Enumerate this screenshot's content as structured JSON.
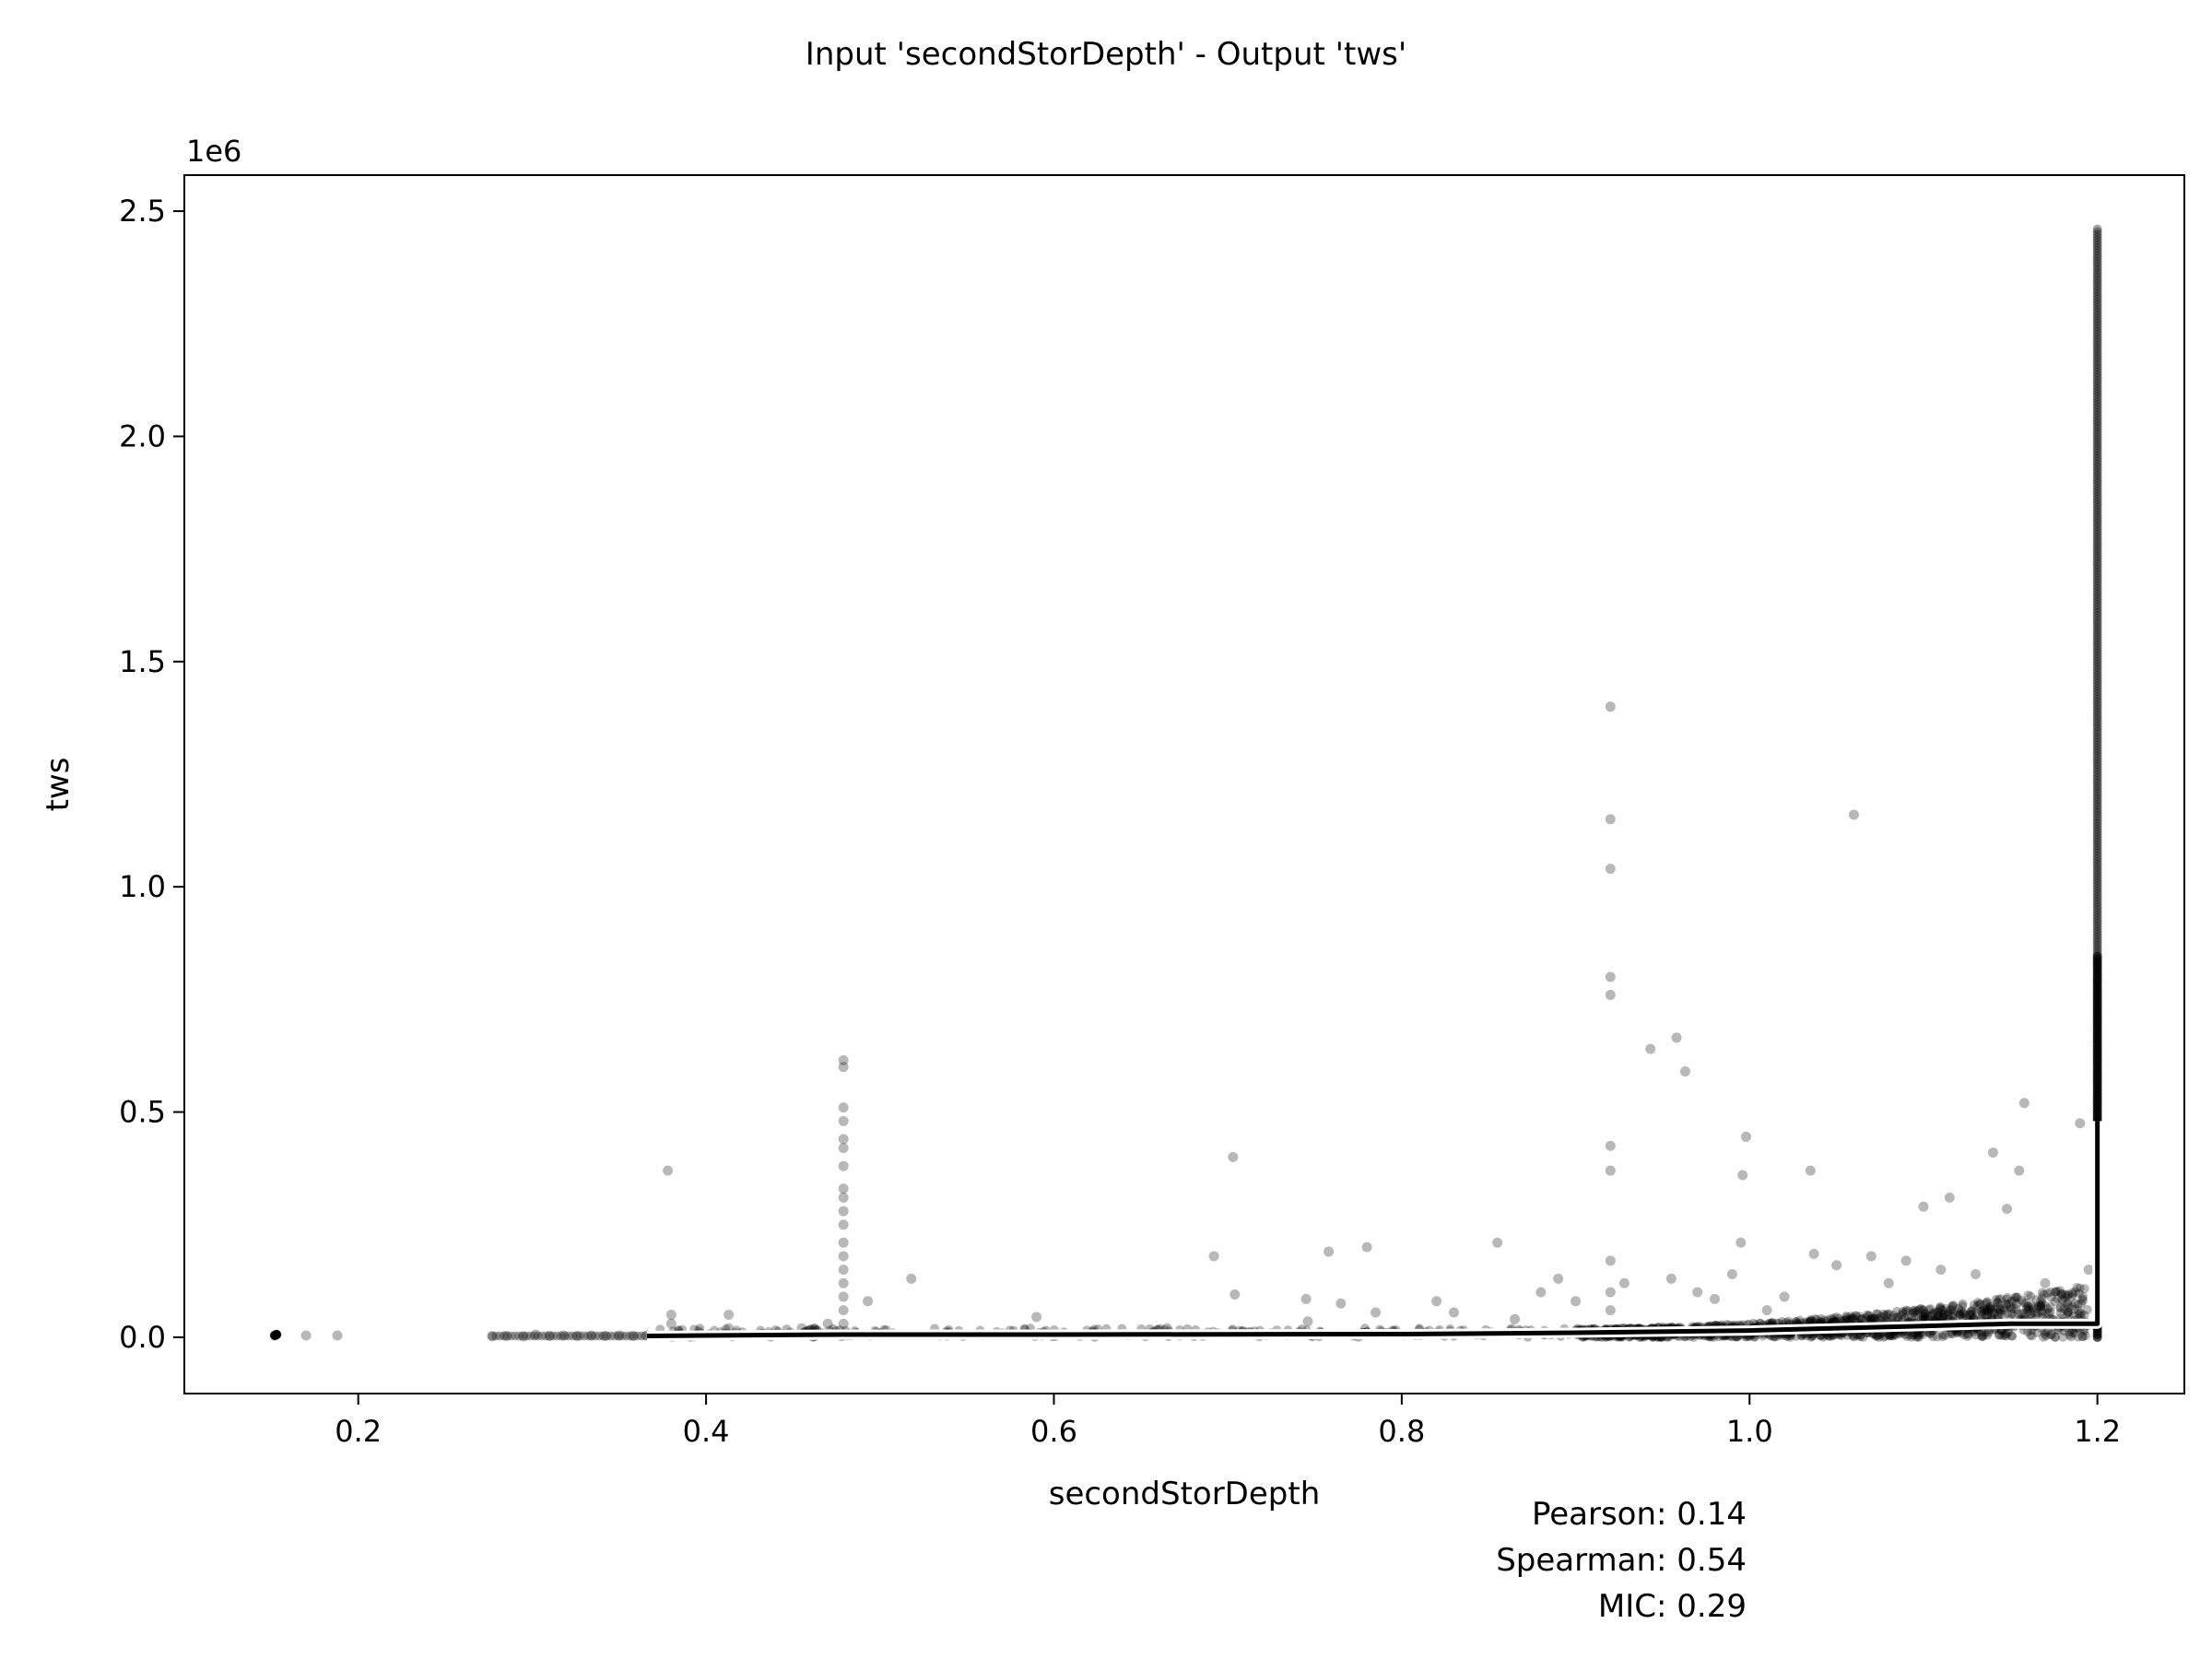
{
  "chart_data": {
    "type": "scatter",
    "title": "Input 'secondStorDepth' - Output 'tws'",
    "xlabel": "secondStorDepth",
    "ylabel": "tws",
    "y_offset_label": "1e6",
    "xlim": [
      0.1,
      1.25
    ],
    "ylim": [
      -0.125,
      2.58
    ],
    "y_scale_note": "values in units of 1e6",
    "x_ticks": [
      0.2,
      0.4,
      0.6,
      0.8,
      1.0,
      1.2
    ],
    "x_tick_labels": [
      "0.2",
      "0.4",
      "0.6",
      "0.8",
      "1.0",
      "1.2"
    ],
    "y_ticks": [
      0.0,
      0.5,
      1.0,
      1.5,
      2.0,
      2.5
    ],
    "y_tick_labels": [
      "0.0",
      "0.5",
      "1.0",
      "1.5",
      "2.0",
      "2.5"
    ],
    "grid": false,
    "legend": "none",
    "point_color": "#000000",
    "point_opacity": 0.28,
    "line_color": "#000000",
    "series": [
      {
        "kind": "scatter",
        "points": [
          [
            0.152,
            0.004
          ],
          [
            0.153,
            0.006
          ],
          [
            0.17,
            0.004
          ],
          [
            0.188,
            0.004
          ],
          [
            0.277,
            0.002
          ],
          [
            0.285,
            0.003
          ],
          [
            0.295,
            0.002
          ],
          [
            0.302,
            0.006
          ],
          [
            0.31,
            0.003
          ],
          [
            0.318,
            0.004
          ],
          [
            0.326,
            0.003
          ],
          [
            0.334,
            0.004
          ],
          [
            0.342,
            0.003
          ],
          [
            0.35,
            0.004
          ],
          [
            0.358,
            0.003
          ],
          [
            0.366,
            0.004
          ],
          [
            0.378,
            0.37
          ],
          [
            0.38,
            0.05
          ],
          [
            0.38,
            0.03
          ],
          [
            0.413,
            0.05
          ],
          [
            0.413,
            0.02
          ],
          [
            0.44,
            0.015
          ],
          [
            0.455,
            0.02
          ],
          [
            0.47,
            0.03
          ],
          [
            0.479,
            0.615
          ],
          [
            0.479,
            0.6
          ],
          [
            0.479,
            0.51
          ],
          [
            0.479,
            0.48
          ],
          [
            0.479,
            0.44
          ],
          [
            0.479,
            0.42
          ],
          [
            0.479,
            0.38
          ],
          [
            0.479,
            0.33
          ],
          [
            0.479,
            0.31
          ],
          [
            0.479,
            0.28
          ],
          [
            0.479,
            0.25
          ],
          [
            0.479,
            0.21
          ],
          [
            0.479,
            0.18
          ],
          [
            0.479,
            0.15
          ],
          [
            0.479,
            0.12
          ],
          [
            0.479,
            0.09
          ],
          [
            0.479,
            0.06
          ],
          [
            0.479,
            0.03
          ],
          [
            0.493,
            0.08
          ],
          [
            0.518,
            0.13
          ],
          [
            0.59,
            0.045
          ],
          [
            0.665,
            0.02
          ],
          [
            0.692,
            0.18
          ],
          [
            0.703,
            0.4
          ],
          [
            0.704,
            0.095
          ],
          [
            0.745,
            0.085
          ],
          [
            0.746,
            0.035
          ],
          [
            0.758,
            0.19
          ],
          [
            0.765,
            0.075
          ],
          [
            0.78,
            0.2
          ],
          [
            0.785,
            0.055
          ],
          [
            0.82,
            0.08
          ],
          [
            0.83,
            0.055
          ],
          [
            0.855,
            0.21
          ],
          [
            0.865,
            0.04
          ],
          [
            0.88,
            0.1
          ],
          [
            0.89,
            0.13
          ],
          [
            0.9,
            0.08
          ],
          [
            0.92,
            1.4
          ],
          [
            0.92,
            1.15
          ],
          [
            0.92,
            1.04
          ],
          [
            0.92,
            0.8
          ],
          [
            0.92,
            0.76
          ],
          [
            0.92,
            0.425
          ],
          [
            0.92,
            0.37
          ],
          [
            0.92,
            0.17
          ],
          [
            0.92,
            0.1
          ],
          [
            0.92,
            0.06
          ],
          [
            0.928,
            0.12
          ],
          [
            0.943,
            0.64
          ],
          [
            0.958,
            0.665
          ],
          [
            0.963,
            0.59
          ],
          [
            0.955,
            0.13
          ],
          [
            0.97,
            0.1
          ],
          [
            0.98,
            0.085
          ],
          [
            0.99,
            0.14
          ],
          [
            0.995,
            0.21
          ],
          [
            0.996,
            0.36
          ],
          [
            0.998,
            0.445
          ],
          [
            1.01,
            0.06
          ],
          [
            1.02,
            0.09
          ],
          [
            1.035,
            0.37
          ],
          [
            1.037,
            0.185
          ],
          [
            1.05,
            0.16
          ],
          [
            1.06,
            1.16
          ],
          [
            1.07,
            0.18
          ],
          [
            1.08,
            0.12
          ],
          [
            1.09,
            0.17
          ],
          [
            1.1,
            0.29
          ],
          [
            1.11,
            0.15
          ],
          [
            1.115,
            0.31
          ],
          [
            1.13,
            0.14
          ],
          [
            1.14,
            0.41
          ],
          [
            1.148,
            0.285
          ],
          [
            1.155,
            0.37
          ],
          [
            1.158,
            0.52
          ],
          [
            1.17,
            0.12
          ],
          [
            1.19,
            0.475
          ],
          [
            1.195,
            0.15
          ]
        ]
      },
      {
        "kind": "scatter",
        "name": "vertical band at x=1.2",
        "x": 1.2,
        "y_range": [
          0.0,
          2.46
        ]
      },
      {
        "kind": "line",
        "points": [
          [
            0.366,
            0.003
          ],
          [
            0.479,
            0.006
          ],
          [
            0.6,
            0.006
          ],
          [
            0.8,
            0.007
          ],
          [
            0.9,
            0.01
          ],
          [
            1.0,
            0.015
          ],
          [
            1.05,
            0.02
          ],
          [
            1.1,
            0.025
          ],
          [
            1.15,
            0.03
          ],
          [
            1.195,
            0.03
          ],
          [
            1.2,
            0.03
          ],
          [
            1.2,
            0.48
          ]
        ]
      }
    ],
    "annotations": [
      "Pearson: 0.14",
      "Spearman: 0.54",
      "MIC: 0.29"
    ]
  }
}
